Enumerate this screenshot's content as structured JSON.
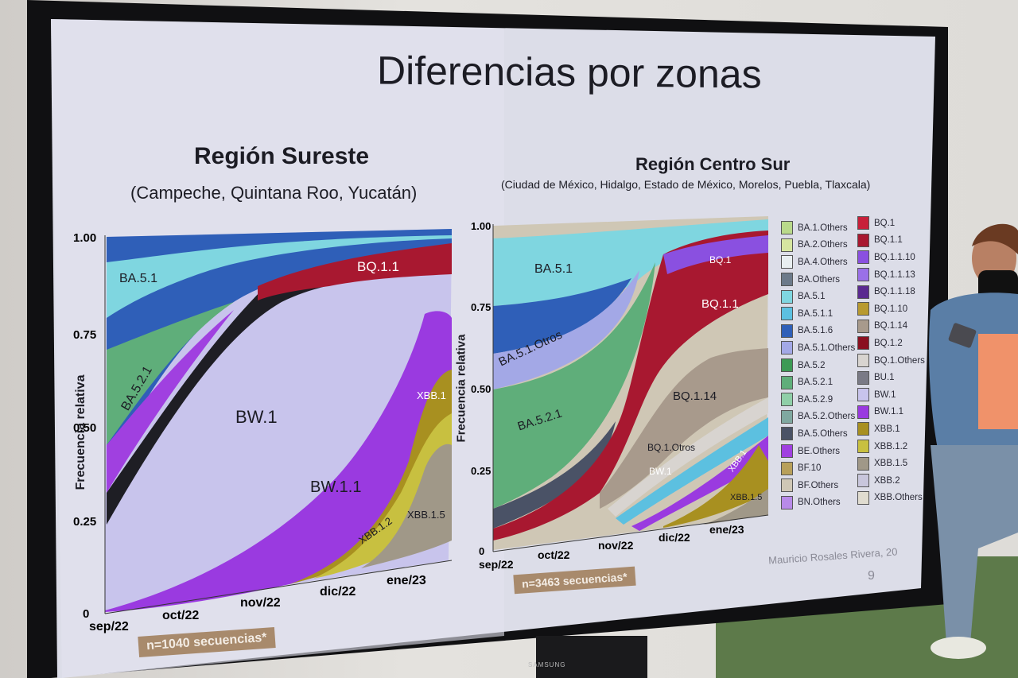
{
  "slide": {
    "title": "Diferencias por zonas",
    "page_number": "9",
    "author": "Mauricio Rosales Rivera, 20"
  },
  "tv": {
    "brand": "SAMSUNG"
  },
  "left_panel": {
    "title": "Región  Sureste",
    "subtitle": "(Campeche, Quintana Roo, Yucatán)",
    "ylabel": "Frecuencia relativa",
    "yticks": [
      "1.00",
      "0.75",
      "0.50",
      "0.25",
      "0"
    ],
    "xticks": [
      "sep/22",
      "oct/22",
      "nov/22",
      "dic/22",
      "ene/23"
    ],
    "stream_labels": [
      "BA.5.1",
      "BA.5.2.1",
      "BW.1",
      "BW.1.1",
      "BQ.1.1",
      "XBB.1",
      "XBB.1.2",
      "XBB.1.5"
    ],
    "n_badge": "n=1040 secuencias*"
  },
  "right_panel": {
    "title": "Región Centro Sur",
    "subtitle": "(Ciudad de México, Hidalgo, Estado de México, Morelos, Puebla, Tlaxcala)",
    "ylabel": "Frecuencia relativa",
    "yticks": [
      "1.00",
      "0.75",
      "0.50",
      "0.25",
      "0"
    ],
    "xticks": [
      "sep/22",
      "oct/22",
      "nov/22",
      "dic/22",
      "ene/23"
    ],
    "stream_labels": [
      "BA.5.1",
      "BA.5.1.Otros",
      "BA.5.2.1",
      "BQ.1",
      "BQ.1.1",
      "BQ.1.14",
      "BQ.1.Otros",
      "BW.1",
      "XBB.1",
      "XBB.1.5"
    ],
    "n_badge": "n=3463 secuencias*"
  },
  "legend_col1": [
    {
      "label": "BA.1.Others",
      "color": "#b9d98a"
    },
    {
      "label": "BA.2.Others",
      "color": "#d6e6a0"
    },
    {
      "label": "BA.4.Others",
      "color": "#e8eef0"
    },
    {
      "label": "BA.Others",
      "color": "#6c7a8a"
    },
    {
      "label": "BA.5.1",
      "color": "#7fd6e0"
    },
    {
      "label": "BA.5.1.1",
      "color": "#5cc0e0"
    },
    {
      "label": "BA.5.1.6",
      "color": "#2f5fb8"
    },
    {
      "label": "BA.5.1.Others",
      "color": "#a3a8e6"
    },
    {
      "label": "BA.5.2",
      "color": "#3d9a55"
    },
    {
      "label": "BA.5.2.1",
      "color": "#5fae7a"
    },
    {
      "label": "BA.5.2.9",
      "color": "#8fcfa8"
    },
    {
      "label": "BA.5.2.Others",
      "color": "#7fa8a0"
    },
    {
      "label": "BA.5.Others",
      "color": "#4a5266"
    },
    {
      "label": "BE.Others",
      "color": "#a040e0"
    },
    {
      "label": "BF.10",
      "color": "#b8a05a"
    },
    {
      "label": "BF.Others",
      "color": "#cfc7b5"
    },
    {
      "label": "BN.Others",
      "color": "#b88ae8"
    }
  ],
  "legend_col2": [
    {
      "label": "BQ.1",
      "color": "#c8203a"
    },
    {
      "label": "BQ.1.1",
      "color": "#a81830"
    },
    {
      "label": "BQ.1.1.10",
      "color": "#8a50e0"
    },
    {
      "label": "BQ.1.1.13",
      "color": "#9a70e8"
    },
    {
      "label": "BQ.1.1.18",
      "color": "#5a2a90"
    },
    {
      "label": "BQ.1.10",
      "color": "#b89a30"
    },
    {
      "label": "BQ.1.14",
      "color": "#a89a8c"
    },
    {
      "label": "BQ.1.2",
      "color": "#8a1020"
    },
    {
      "label": "BQ.1.Others",
      "color": "#d8d4d0"
    },
    {
      "label": "BU.1",
      "color": "#7a7a86"
    },
    {
      "label": "BW.1",
      "color": "#c8c4ec"
    },
    {
      "label": "BW.1.1",
      "color": "#9a3ae0"
    },
    {
      "label": "XBB.1",
      "color": "#a89020"
    },
    {
      "label": "XBB.1.2",
      "color": "#c8c040"
    },
    {
      "label": "XBB.1.5",
      "color": "#a09888"
    },
    {
      "label": "XBB.2",
      "color": "#c8c6dc"
    },
    {
      "label": "XBB.Others",
      "color": "#e0dcd0"
    }
  ]
}
